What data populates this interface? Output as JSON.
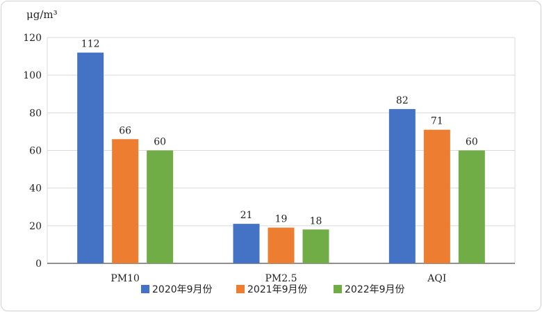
{
  "chart_data": {
    "type": "bar",
    "unit_label": "μg/m³",
    "categories": [
      "PM10",
      "PM2.5",
      "AQI"
    ],
    "series": [
      {
        "name": "2020年9月份",
        "values": [
          112,
          21,
          82
        ],
        "color": "#4472C4"
      },
      {
        "name": "2021年9月份",
        "values": [
          66,
          19,
          71
        ],
        "color": "#ED7D31"
      },
      {
        "name": "2022年9月份",
        "values": [
          60,
          18,
          60
        ],
        "color": "#70AD47"
      }
    ],
    "ylim": [
      0,
      120
    ],
    "yticks": [
      0,
      20,
      40,
      60,
      80,
      100,
      120
    ],
    "grid": true,
    "legend_position": "bottom"
  }
}
